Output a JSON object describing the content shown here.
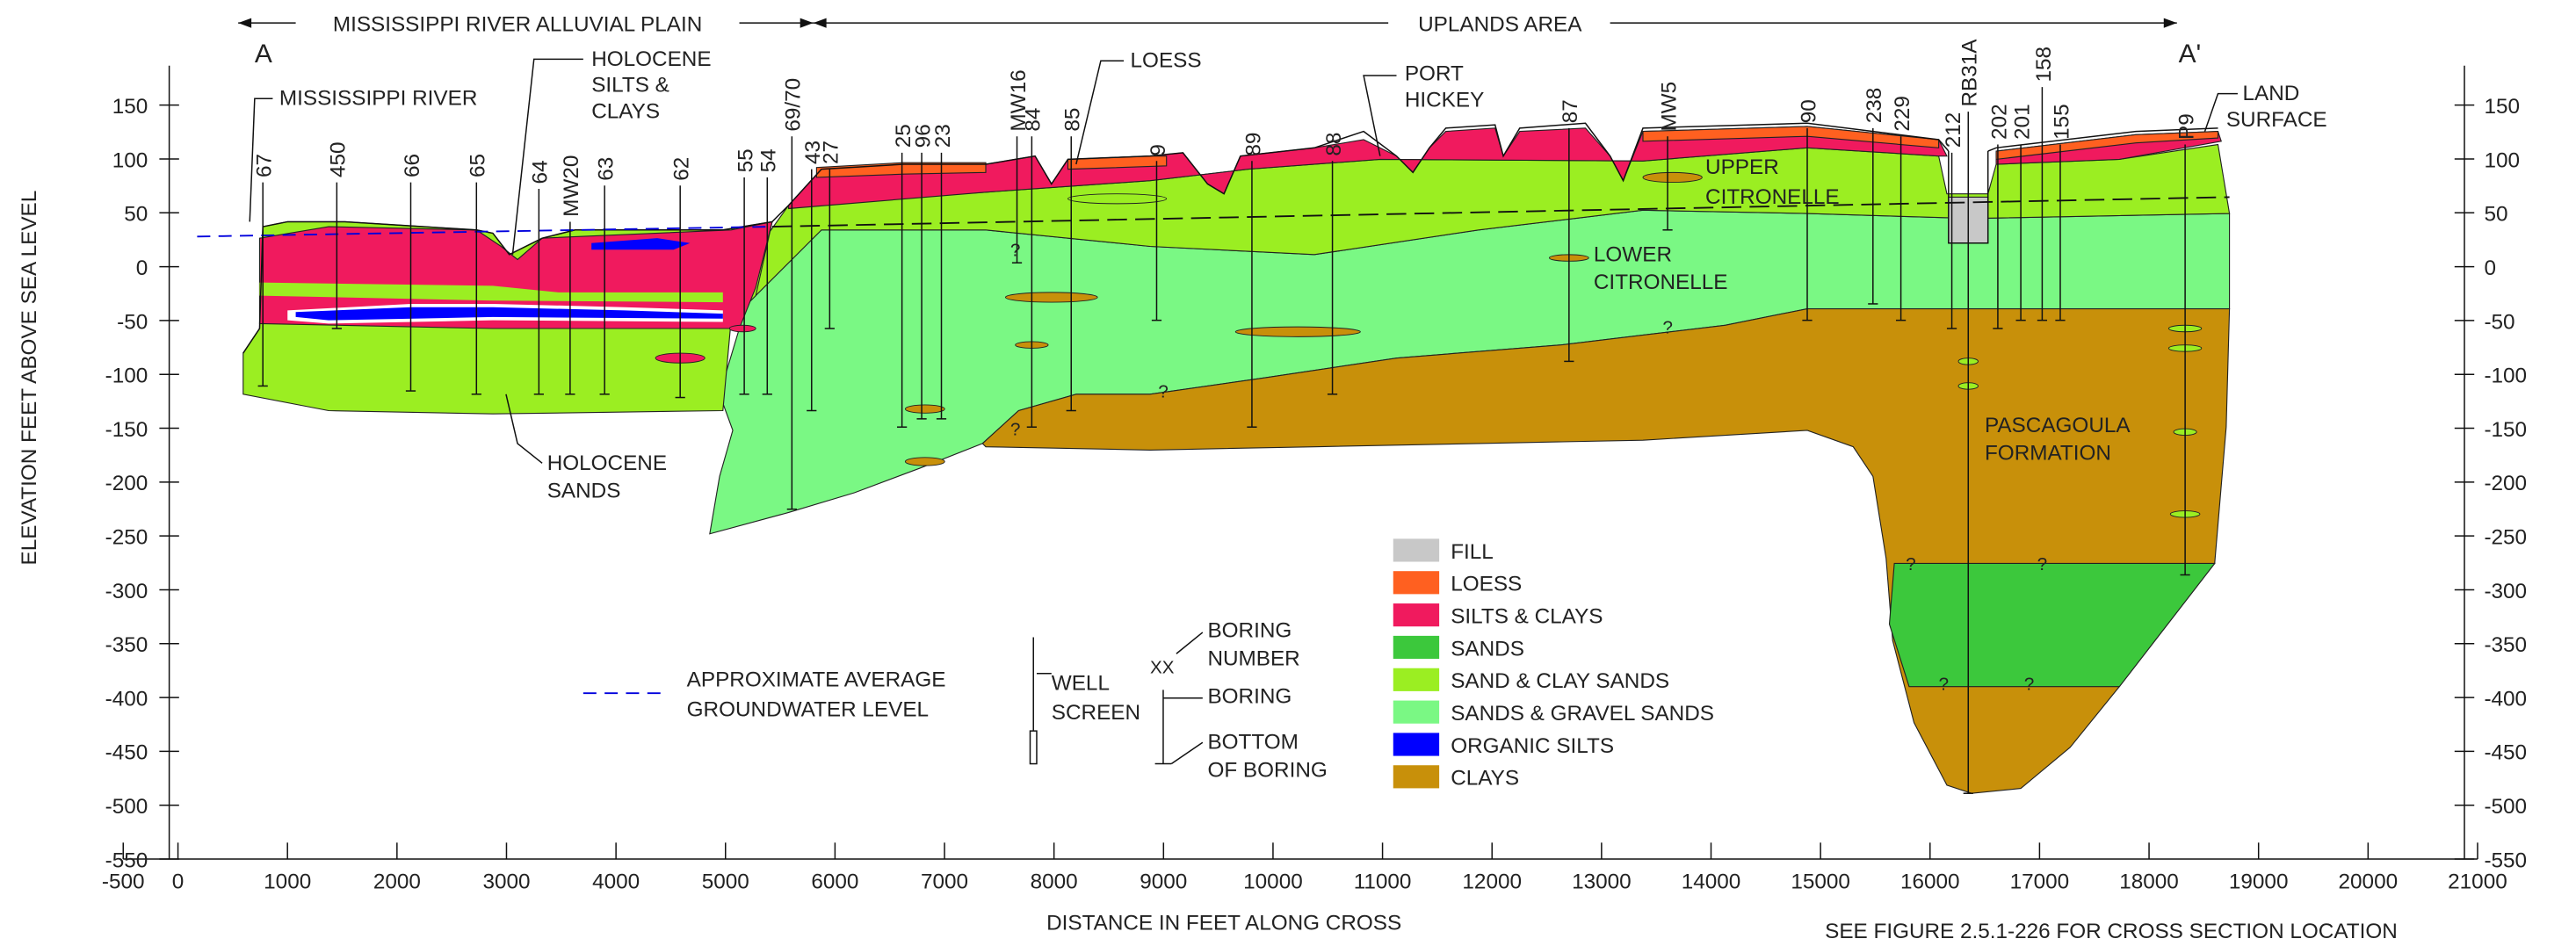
{
  "header": {
    "left_zone": "MISSISSIPPI RIVER ALLUVIAL PLAIN",
    "right_zone": "UPLANDS AREA",
    "start": "A",
    "end": "A'"
  },
  "annotations": {
    "river": "MISSISSIPPI RIVER",
    "holocene_silts": [
      "HOLOCENE",
      "SILTS &",
      "CLAYS"
    ],
    "loess": "LOESS",
    "port_hickey": [
      "PORT",
      "HICKEY"
    ],
    "land_surface": [
      "LAND",
      "SURFACE"
    ],
    "upper_citronelle": [
      "UPPER",
      "CITRONELLE"
    ],
    "lower_citronelle": [
      "LOWER",
      "CITRONELLE"
    ],
    "holocene_sands": [
      "HOLOCENE",
      "SANDS"
    ],
    "pascagoula": [
      "PASCAGOULA",
      "FORMATION"
    ],
    "question_mark": "?"
  },
  "borings": [
    "67",
    "450",
    "66",
    "65",
    "64",
    "MW20",
    "63",
    "62",
    "55",
    "54",
    "69/70",
    "43",
    "27",
    "25",
    "96",
    "23",
    "MW16",
    "84",
    "85",
    "9",
    "89",
    "88",
    "87",
    "MW5",
    "90",
    "238",
    "229",
    "212",
    "RB31A",
    "202",
    "201",
    "158",
    "155",
    "P9"
  ],
  "legend": [
    {
      "label": "FILL",
      "color": "#c8c8c8"
    },
    {
      "label": "LOESS",
      "color": "#ff6020"
    },
    {
      "label": "SILTS & CLAYS",
      "color": "#f01a5e"
    },
    {
      "label": "SANDS",
      "color": "#3cc83c"
    },
    {
      "label": "SAND & CLAY SANDS",
      "color": "#9bee22"
    },
    {
      "label": "SANDS & GRAVEL SANDS",
      "color": "#7af884"
    },
    {
      "label": "ORGANIC SILTS",
      "color": "#0000ff"
    },
    {
      "label": "CLAYS",
      "color": "#c8900a"
    }
  ],
  "key": {
    "groundwater": [
      "APPROXIMATE AVERAGE",
      "GROUNDWATER LEVEL"
    ],
    "well_screen": [
      "WELL",
      "SCREEN"
    ],
    "boring_id": "XX",
    "boring_number": [
      "BORING",
      "NUMBER"
    ],
    "boring": "BORING",
    "bottom": [
      "BOTTOM",
      "OF BORING"
    ]
  },
  "axes": {
    "y_title": "ELEVATION FEET ABOVE SEA LEVEL",
    "x_title": "DISTANCE IN FEET ALONG CROSS",
    "ylim": [
      -550,
      150
    ],
    "yticks": [
      150,
      100,
      50,
      0,
      -50,
      -100,
      -150,
      -200,
      -250,
      -300,
      -350,
      -400,
      -450,
      -500,
      -550
    ],
    "xlim": [
      -500,
      21000
    ],
    "xticks": [
      -500,
      0,
      1000,
      2000,
      3000,
      4000,
      5000,
      6000,
      7000,
      8000,
      9000,
      10000,
      11000,
      12000,
      13000,
      14000,
      15000,
      16000,
      17000,
      18000,
      19000,
      20000,
      21000
    ]
  },
  "footnote": "SEE FIGURE 2.5.1-226 FOR CROSS SECTION LOCATION"
}
